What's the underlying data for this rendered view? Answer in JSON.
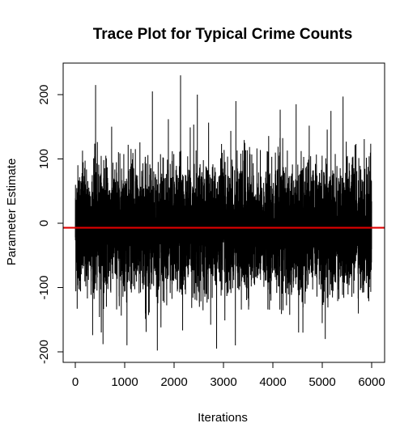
{
  "chart_data": {
    "type": "line",
    "title": "Trace Plot for Typical Crime Counts",
    "xlabel": "Iterations",
    "ylabel": "Parameter Estimate",
    "xlim": [
      0,
      6000
    ],
    "ylim": [
      -200,
      235
    ],
    "x_ticks": [
      0,
      1000,
      2000,
      3000,
      4000,
      5000,
      6000
    ],
    "y_ticks": [
      -200,
      -100,
      0,
      100,
      200
    ],
    "grid": false,
    "legend": "none",
    "reference_line": {
      "y": -7,
      "color": "#e00000"
    },
    "trace": {
      "n_iterations": 6000,
      "mean": -7,
      "sd": 48,
      "max": 230,
      "min": -198,
      "color": "#000000",
      "spikes": [
        {
          "x": 410,
          "y": 215
        },
        {
          "x": 2130,
          "y": 230
        },
        {
          "x": 1560,
          "y": 205
        },
        {
          "x": 2470,
          "y": 200
        },
        {
          "x": 3250,
          "y": 190
        },
        {
          "x": 5420,
          "y": 197
        },
        {
          "x": 4470,
          "y": 185
        },
        {
          "x": 1660,
          "y": -198
        },
        {
          "x": 2860,
          "y": -195
        },
        {
          "x": 3240,
          "y": -190
        },
        {
          "x": 560,
          "y": -188
        },
        {
          "x": 5060,
          "y": -180
        },
        {
          "x": 4520,
          "y": -170
        }
      ]
    }
  }
}
